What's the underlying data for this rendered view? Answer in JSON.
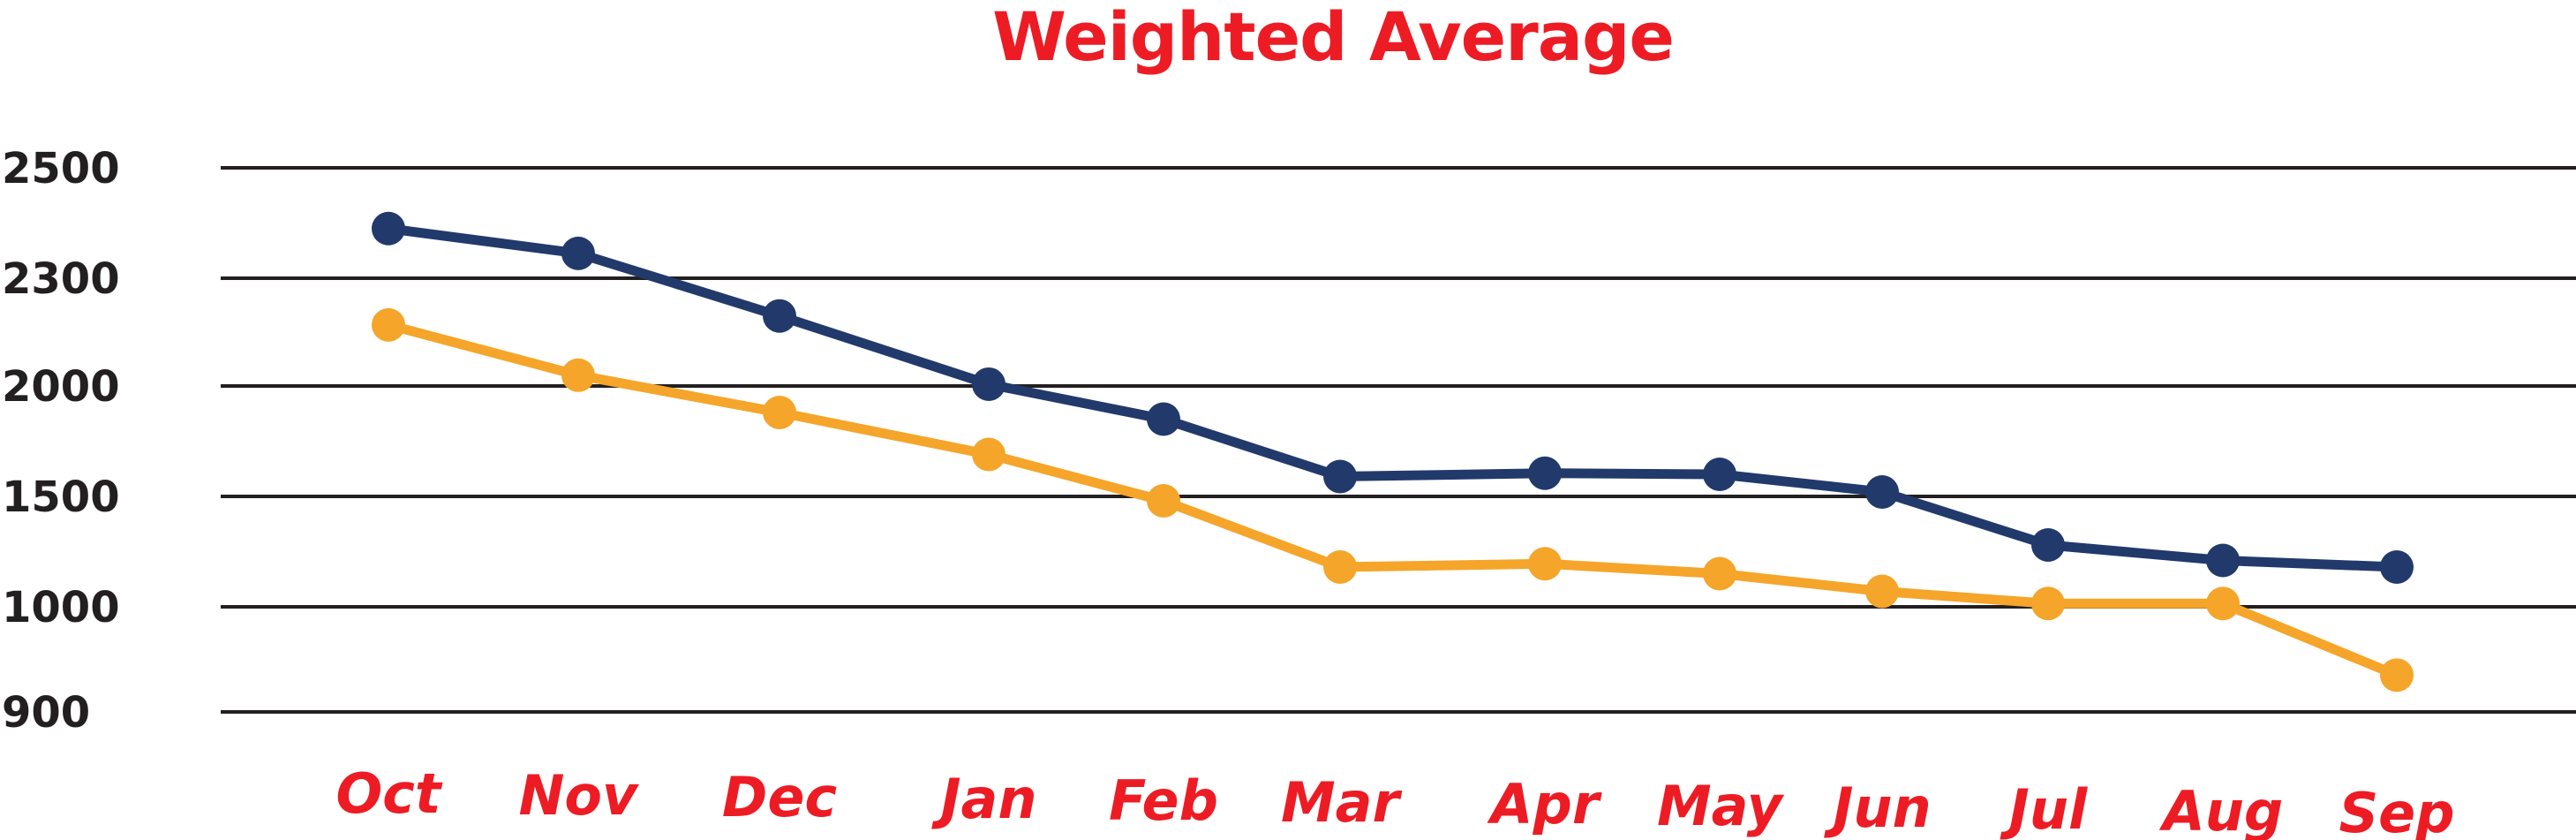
{
  "chart_data": {
    "type": "line",
    "title": "Weighted Average",
    "xlabel": "",
    "ylabel": "",
    "categories": [
      "Oct",
      "Nov",
      "Dec",
      "Jan",
      "Feb",
      "Mar",
      "Apr",
      "May",
      "Jun",
      "Jul",
      "Aug",
      "Sep"
    ],
    "y_ticks": [
      "2500",
      "2300",
      "2000",
      "1500",
      "1000",
      "900"
    ],
    "grid": true,
    "legend": "none",
    "series": [
      {
        "values": [
          2390,
          2345,
          2195,
          2005,
          1850,
          1590,
          1605,
          1600,
          1520,
          1280,
          1210,
          1180
        ]
      },
      {
        "values": [
          2170,
          2030,
          1880,
          1690,
          1480,
          1180,
          1195,
          1150,
          1070,
          1015,
          1015,
          935
        ]
      }
    ],
    "colors": {
      "title": "#ed1c24",
      "x_tick": "#ed1c24",
      "y_tick": "#231f20",
      "grid": "#231f20",
      "series": [
        "#213a6b",
        "#f5a52a"
      ]
    }
  }
}
